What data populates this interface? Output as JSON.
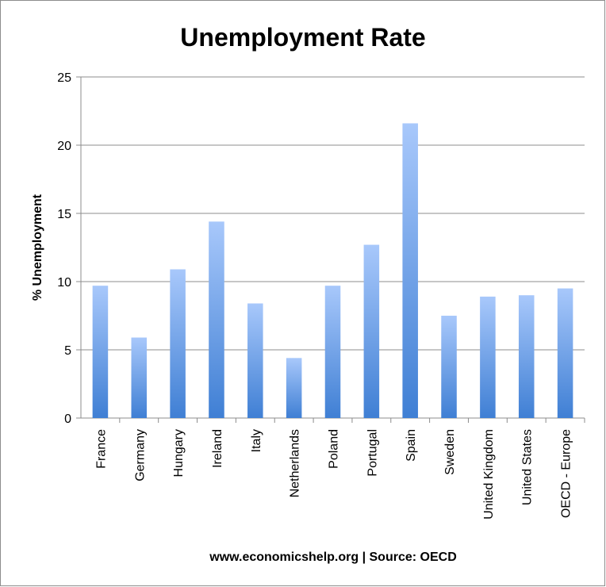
{
  "chart_data": {
    "type": "bar",
    "title": "Unemployment Rate",
    "ylabel": "% Unemployment",
    "xlabel": "",
    "footer": "www.economicshelp.org | Source: OECD",
    "ylim": [
      0,
      25
    ],
    "yticks": [
      0,
      5,
      10,
      15,
      20,
      25
    ],
    "grid": true,
    "bar_color_top": "#a8c8fb",
    "bar_color_bottom": "#3f7fd4",
    "categories": [
      "France",
      "Germany",
      "Hungary",
      "Ireland",
      "Italy",
      "Netherlands",
      "Poland",
      "Portugal",
      "Spain",
      "Sweden",
      "United Kingdom",
      "United States",
      "OECD - Europe"
    ],
    "values": [
      9.7,
      5.9,
      10.9,
      14.4,
      8.4,
      4.4,
      9.7,
      12.7,
      21.6,
      7.5,
      8.9,
      9.0,
      9.5
    ]
  }
}
